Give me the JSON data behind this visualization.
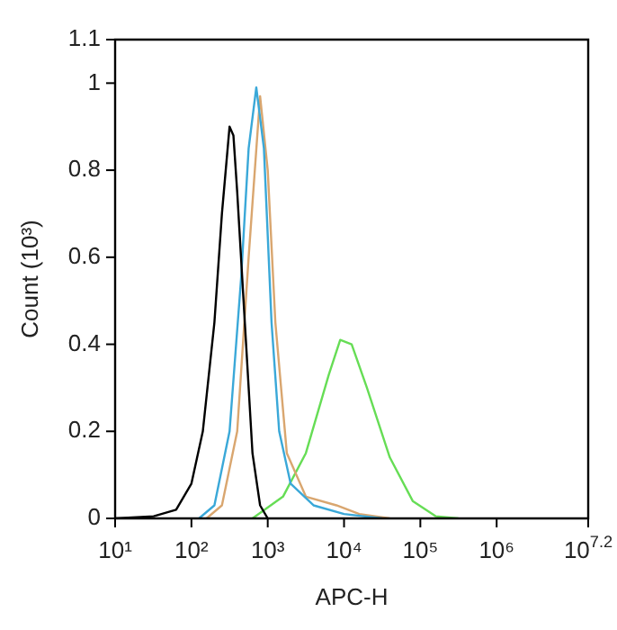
{
  "chart_data": {
    "type": "line",
    "xlabel": "APC-H",
    "ylabel": "Count (10³)",
    "log": "x",
    "xlim": [
      10,
      15848932
    ],
    "xticks": [
      {
        "value": 10,
        "label": "10¹"
      },
      {
        "value": 100,
        "label": "10²"
      },
      {
        "value": 1000,
        "label": "10³"
      },
      {
        "value": 10000,
        "label": "10⁴"
      },
      {
        "value": 100000,
        "label": "10⁵"
      },
      {
        "value": 1000000,
        "label": "10⁶"
      },
      {
        "value": 15848932,
        "label": "10$^{7.2}$"
      }
    ],
    "ylim": [
      0,
      1.1
    ],
    "yticks": [
      0,
      0.2,
      0.4,
      0.6,
      0.8,
      1,
      1.1
    ],
    "grid": false,
    "legend": false,
    "marker": "none",
    "line_style": "solid",
    "series": [
      {
        "color": "#000000",
        "x": [
          10,
          32,
          63,
          100,
          141,
          200,
          251,
          316,
          355,
          398,
          501,
          631,
          794,
          1000
        ],
        "values": [
          0,
          0.005,
          0.02,
          0.08,
          0.2,
          0.45,
          0.7,
          0.9,
          0.88,
          0.75,
          0.45,
          0.15,
          0.03,
          0
        ]
      },
      {
        "color": "#3aa8d8",
        "x": [
          126,
          200,
          316,
          447,
          562,
          708,
          891,
          1122,
          1413,
          1995,
          3981,
          10000,
          31623
        ],
        "values": [
          0,
          0.03,
          0.2,
          0.55,
          0.85,
          0.99,
          0.85,
          0.45,
          0.2,
          0.08,
          0.03,
          0.01,
          0
        ]
      },
      {
        "color": "#d9a66f",
        "x": [
          158,
          251,
          398,
          562,
          794,
          1000,
          1259,
          1778,
          3162,
          7943,
          15849,
          39811
        ],
        "values": [
          0,
          0.03,
          0.2,
          0.6,
          0.97,
          0.8,
          0.45,
          0.15,
          0.05,
          0.03,
          0.01,
          0
        ]
      },
      {
        "color": "#66dd55",
        "x": [
          631,
          1585,
          3162,
          6310,
          8913,
          12589,
          19953,
          39811,
          79433,
          158489,
          316228
        ],
        "values": [
          0,
          0.05,
          0.15,
          0.33,
          0.41,
          0.4,
          0.3,
          0.14,
          0.04,
          0.005,
          0
        ]
      }
    ]
  }
}
